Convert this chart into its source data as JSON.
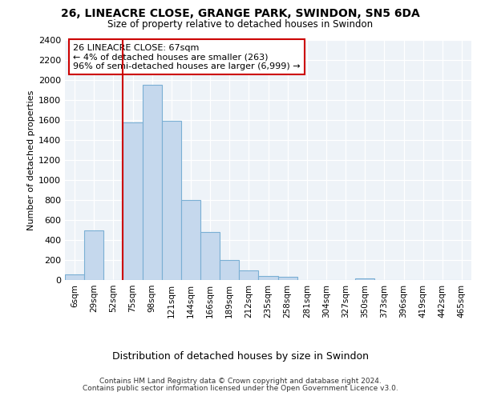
{
  "title1": "26, LINEACRE CLOSE, GRANGE PARK, SWINDON, SN5 6DA",
  "title2": "Size of property relative to detached houses in Swindon",
  "xlabel": "Distribution of detached houses by size in Swindon",
  "ylabel": "Number of detached properties",
  "categories": [
    "6sqm",
    "29sqm",
    "52sqm",
    "75sqm",
    "98sqm",
    "121sqm",
    "144sqm",
    "166sqm",
    "189sqm",
    "212sqm",
    "235sqm",
    "258sqm",
    "281sqm",
    "304sqm",
    "327sqm",
    "350sqm",
    "373sqm",
    "396sqm",
    "419sqm",
    "442sqm",
    "465sqm"
  ],
  "values": [
    60,
    500,
    0,
    1580,
    1950,
    1590,
    800,
    480,
    200,
    95,
    38,
    30,
    0,
    0,
    0,
    20,
    0,
    0,
    0,
    0,
    0
  ],
  "bar_color": "#c5d8ed",
  "bar_edge_color": "#7aafd4",
  "vline_color": "#cc0000",
  "vline_x": 2.5,
  "annotation_line1": "26 LINEACRE CLOSE: 67sqm",
  "annotation_line2": "← 4% of detached houses are smaller (263)",
  "annotation_line3": "96% of semi-detached houses are larger (6,999) →",
  "ylim": [
    0,
    2400
  ],
  "yticks": [
    0,
    200,
    400,
    600,
    800,
    1000,
    1200,
    1400,
    1600,
    1800,
    2000,
    2200,
    2400
  ],
  "footer1": "Contains HM Land Registry data © Crown copyright and database right 2024.",
  "footer2": "Contains public sector information licensed under the Open Government Licence v3.0.",
  "bg_color": "#ffffff",
  "plot_bg_color": "#eef3f8",
  "grid_color": "#ffffff"
}
